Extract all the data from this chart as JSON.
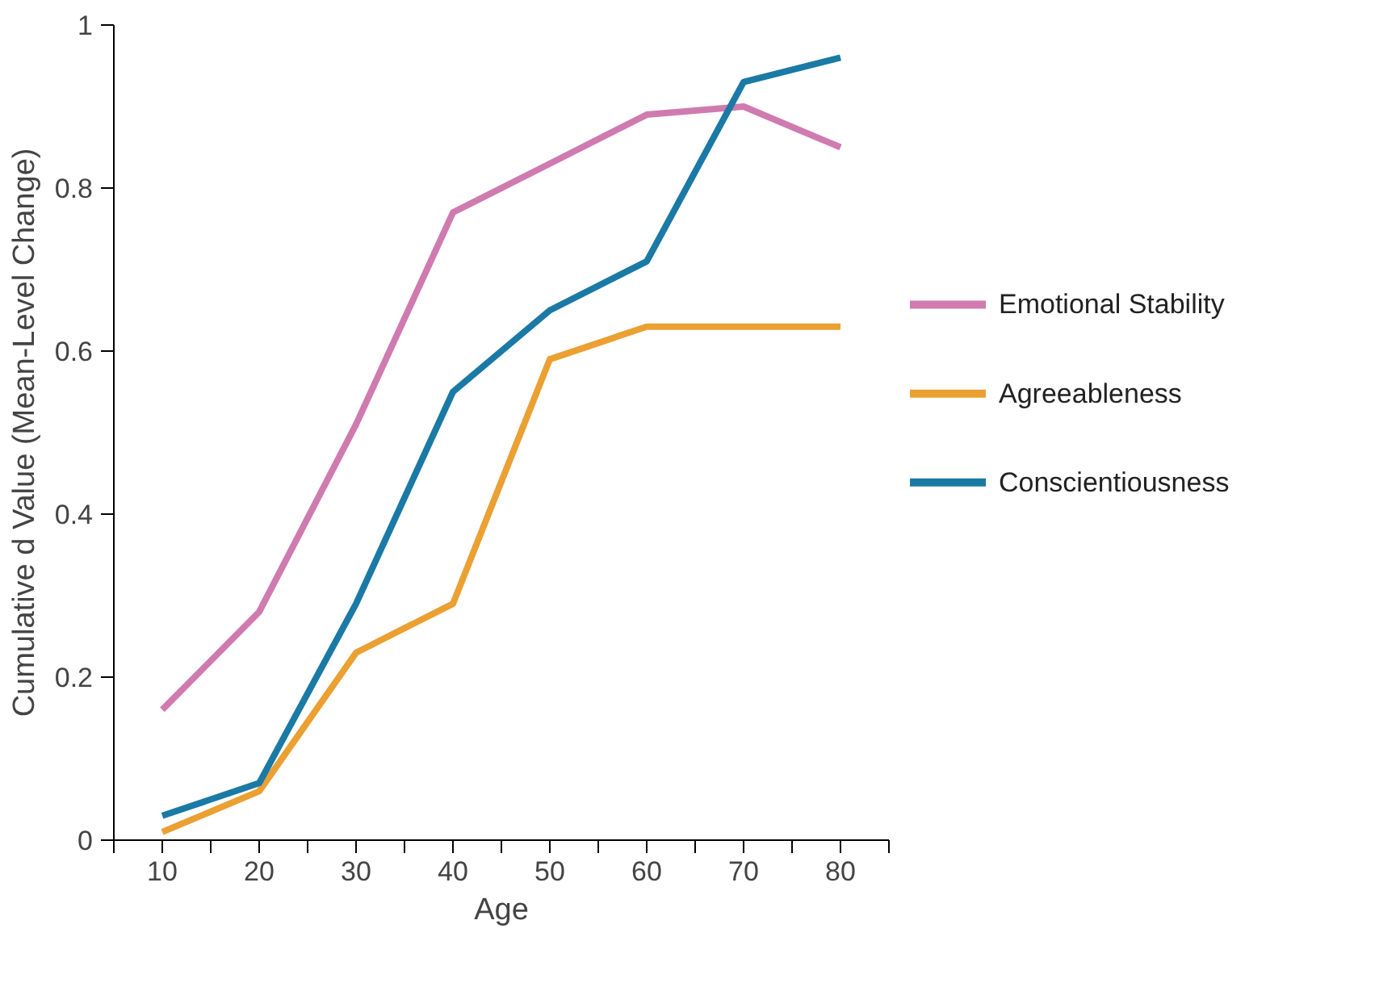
{
  "chart_data": {
    "type": "line",
    "xlabel": "Age",
    "ylabel": "Cumulative d Value (Mean-Level Change)",
    "x": [
      10,
      20,
      30,
      40,
      50,
      60,
      70,
      80
    ],
    "series": [
      {
        "name": "Emotional Stability",
        "color": "#cf7bb0",
        "values": [
          0.16,
          0.28,
          0.51,
          0.77,
          0.83,
          0.89,
          0.9,
          0.85
        ]
      },
      {
        "name": "Agreeableness",
        "color": "#eba032",
        "values": [
          0.01,
          0.06,
          0.23,
          0.29,
          0.59,
          0.63,
          0.63,
          0.63
        ]
      },
      {
        "name": "Conscientiousness",
        "color": "#1a7aa5",
        "values": [
          0.03,
          0.07,
          0.29,
          0.55,
          0.65,
          0.71,
          0.93,
          0.96
        ]
      }
    ],
    "xlim": [
      5,
      85
    ],
    "ylim": [
      0,
      1
    ],
    "xticks": [
      {
        "value": 5,
        "label": null
      },
      10,
      {
        "value": 15,
        "label": null
      },
      20,
      {
        "value": 25,
        "label": null
      },
      30,
      {
        "value": 35,
        "label": null
      },
      40,
      {
        "value": 45,
        "label": null
      },
      50,
      {
        "value": 55,
        "label": null
      },
      60,
      {
        "value": 65,
        "label": null
      },
      70,
      {
        "value": 75,
        "label": null
      },
      80,
      {
        "value": 85,
        "label": null
      }
    ],
    "yticks": [
      0,
      {
        "value": 0.2,
        "label": "0.2"
      },
      {
        "value": 0.4,
        "label": "0.4"
      },
      {
        "value": 0.6,
        "label": "0.6"
      },
      {
        "value": 0.8,
        "label": "0.8"
      },
      1
    ],
    "grid": false,
    "legend": "right",
    "marker": "none",
    "line_style": "solid"
  }
}
